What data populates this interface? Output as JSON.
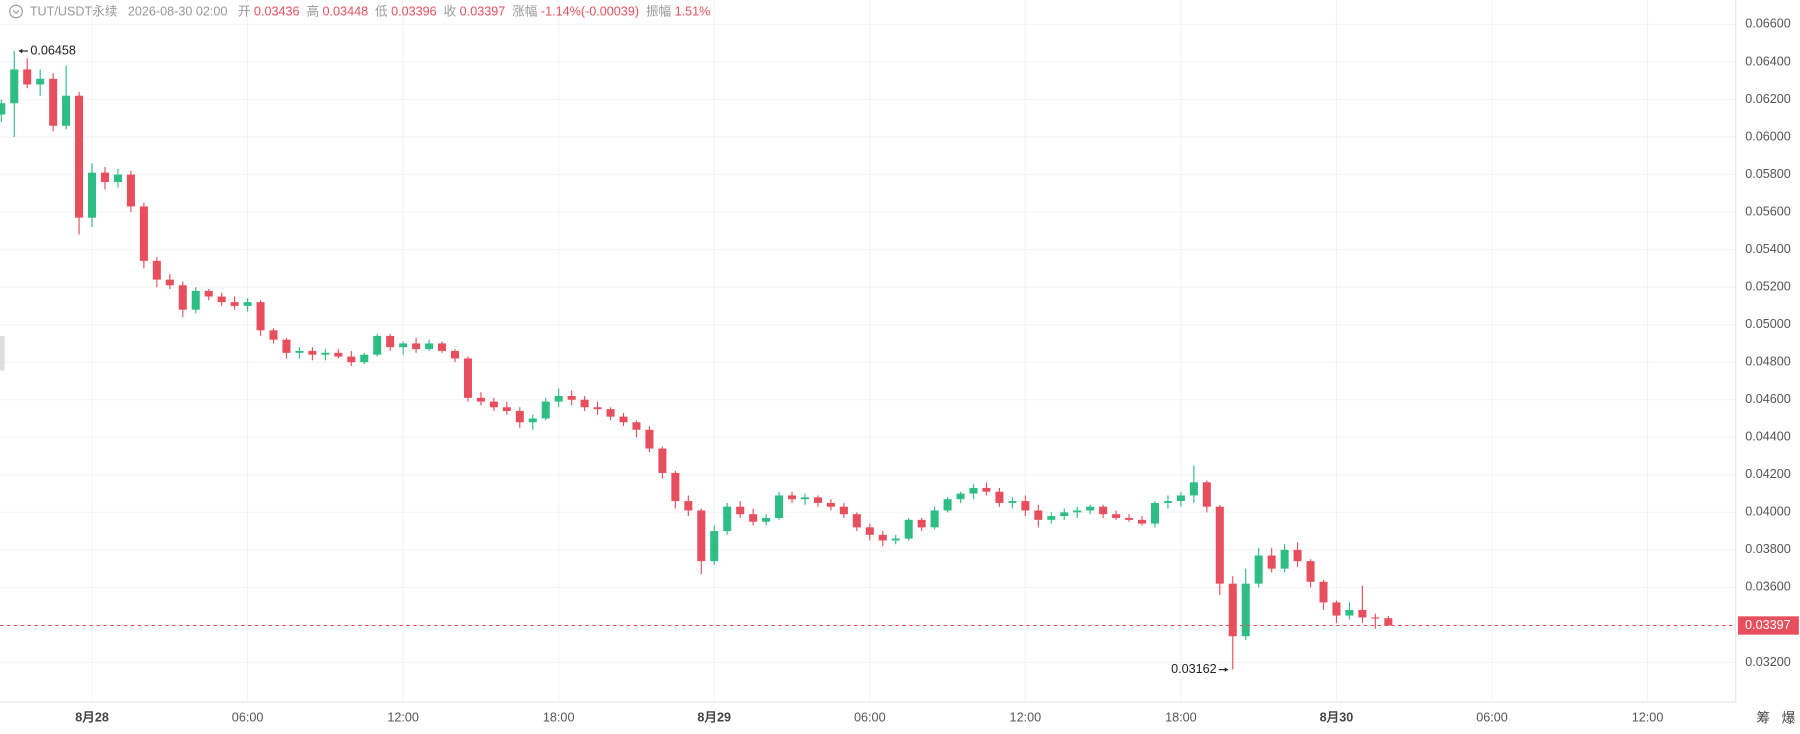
{
  "header": {
    "symbol": "TUT/USDT永续",
    "time": "2026-08-30 02:00",
    "fields": [
      {
        "label": "开",
        "value": "0.03436"
      },
      {
        "label": "高",
        "value": "0.03448"
      },
      {
        "label": "低",
        "value": "0.03396"
      },
      {
        "label": "收",
        "value": "0.03397"
      },
      {
        "label": "涨幅",
        "value": "-1.14%(-0.00039)"
      },
      {
        "label": "振幅",
        "value": "1.51%"
      }
    ]
  },
  "side_buttons": [
    "筹",
    "爆"
  ],
  "chart_data": {
    "type": "candlestick",
    "up_color": "#2ebd85",
    "down_color": "#e84f5e",
    "grid": true,
    "ylim": [
      0.0299,
      0.0673
    ],
    "xlim": [
      -0.1,
      133.8
    ],
    "yticks": [
      {
        "value": 0.066,
        "label": "0.06600"
      },
      {
        "value": 0.064,
        "label": "0.06400"
      },
      {
        "value": 0.062,
        "label": "0.06200"
      },
      {
        "value": 0.06,
        "label": "0.06000"
      },
      {
        "value": 0.058,
        "label": "0.05800"
      },
      {
        "value": 0.056,
        "label": "0.05600"
      },
      {
        "value": 0.054,
        "label": "0.05400"
      },
      {
        "value": 0.052,
        "label": "0.05200"
      },
      {
        "value": 0.05,
        "label": "0.05000"
      },
      {
        "value": 0.048,
        "label": "0.04800"
      },
      {
        "value": 0.046,
        "label": "0.04600"
      },
      {
        "value": 0.044,
        "label": "0.04400"
      },
      {
        "value": 0.042,
        "label": "0.04200"
      },
      {
        "value": 0.04,
        "label": "0.04000"
      },
      {
        "value": 0.038,
        "label": "0.03800"
      },
      {
        "value": 0.036,
        "label": "0.03600"
      },
      {
        "value": 0.034,
        "label": "0.03400"
      },
      {
        "value": 0.032,
        "label": "0.03200"
      }
    ],
    "xticks": [
      {
        "value": 7,
        "label": "8月28"
      },
      {
        "value": 19,
        "label": "06:00"
      },
      {
        "value": 31,
        "label": "12:00"
      },
      {
        "value": 43,
        "label": "18:00"
      },
      {
        "value": 55,
        "label": "8月29"
      },
      {
        "value": 67,
        "label": "06:00"
      },
      {
        "value": 79,
        "label": "12:00"
      },
      {
        "value": 91,
        "label": "18:00"
      },
      {
        "value": 103,
        "label": "8月30"
      },
      {
        "value": 115,
        "label": "06:00"
      },
      {
        "value": 127,
        "label": "12:00"
      }
    ],
    "high_annotation": {
      "index": 1,
      "value": 0.06458,
      "label": "0.06458"
    },
    "low_annotation": {
      "index": 95,
      "value": 0.03162,
      "label": "0.03162"
    },
    "last_price": {
      "value": 0.03397,
      "label": "0.03397"
    },
    "candles": [
      [
        0.0612,
        0.062,
        0.0608,
        0.0618
      ],
      [
        0.0618,
        0.06458,
        0.06,
        0.0636
      ],
      [
        0.0636,
        0.0642,
        0.0626,
        0.0628
      ],
      [
        0.0628,
        0.0636,
        0.0622,
        0.0631
      ],
      [
        0.0631,
        0.0634,
        0.0603,
        0.0606
      ],
      [
        0.0606,
        0.0638,
        0.0604,
        0.0622
      ],
      [
        0.0622,
        0.0624,
        0.0548,
        0.0557
      ],
      [
        0.0557,
        0.0586,
        0.0552,
        0.0581
      ],
      [
        0.0581,
        0.0584,
        0.0572,
        0.0576
      ],
      [
        0.0576,
        0.0583,
        0.0573,
        0.058
      ],
      [
        0.058,
        0.0582,
        0.056,
        0.0563
      ],
      [
        0.0563,
        0.0565,
        0.053,
        0.0534
      ],
      [
        0.0534,
        0.0536,
        0.052,
        0.0524
      ],
      [
        0.0524,
        0.0527,
        0.0519,
        0.0521
      ],
      [
        0.0521,
        0.0523,
        0.0504,
        0.0508
      ],
      [
        0.0508,
        0.052,
        0.0506,
        0.0518
      ],
      [
        0.0518,
        0.0519,
        0.0513,
        0.0515
      ],
      [
        0.0515,
        0.0517,
        0.051,
        0.0512
      ],
      [
        0.0512,
        0.0515,
        0.0508,
        0.051
      ],
      [
        0.051,
        0.0514,
        0.0507,
        0.0512
      ],
      [
        0.0512,
        0.0513,
        0.0494,
        0.0497
      ],
      [
        0.0497,
        0.0498,
        0.049,
        0.0492
      ],
      [
        0.0492,
        0.0493,
        0.0482,
        0.0485
      ],
      [
        0.0485,
        0.0488,
        0.0482,
        0.0486
      ],
      [
        0.0486,
        0.0488,
        0.0481,
        0.0484
      ],
      [
        0.0484,
        0.0487,
        0.0481,
        0.0485
      ],
      [
        0.0485,
        0.0487,
        0.0482,
        0.0483
      ],
      [
        0.0483,
        0.0486,
        0.0478,
        0.048
      ],
      [
        0.048,
        0.0485,
        0.0479,
        0.0484
      ],
      [
        0.0484,
        0.0495,
        0.0483,
        0.0494
      ],
      [
        0.0494,
        0.0495,
        0.0486,
        0.0488
      ],
      [
        0.0488,
        0.0491,
        0.0484,
        0.049
      ],
      [
        0.049,
        0.0493,
        0.0485,
        0.0487
      ],
      [
        0.0487,
        0.0492,
        0.0486,
        0.049
      ],
      [
        0.049,
        0.0491,
        0.0485,
        0.0486
      ],
      [
        0.0486,
        0.0487,
        0.048,
        0.0482
      ],
      [
        0.0482,
        0.0483,
        0.0459,
        0.0461
      ],
      [
        0.0461,
        0.0464,
        0.0457,
        0.0459
      ],
      [
        0.0459,
        0.0461,
        0.0454,
        0.0456
      ],
      [
        0.0456,
        0.0459,
        0.0452,
        0.0454
      ],
      [
        0.0454,
        0.0456,
        0.0445,
        0.0448
      ],
      [
        0.0448,
        0.0452,
        0.0444,
        0.045
      ],
      [
        0.045,
        0.0461,
        0.0449,
        0.0459
      ],
      [
        0.0459,
        0.0466,
        0.0456,
        0.0462
      ],
      [
        0.0462,
        0.0465,
        0.0457,
        0.046
      ],
      [
        0.046,
        0.0462,
        0.0454,
        0.0456
      ],
      [
        0.0456,
        0.0459,
        0.0452,
        0.0455
      ],
      [
        0.0455,
        0.0456,
        0.0449,
        0.0451
      ],
      [
        0.0451,
        0.0453,
        0.0446,
        0.0448
      ],
      [
        0.0448,
        0.0449,
        0.044,
        0.0444
      ],
      [
        0.0444,
        0.0446,
        0.0432,
        0.0434
      ],
      [
        0.0434,
        0.0435,
        0.0418,
        0.0421
      ],
      [
        0.0421,
        0.0422,
        0.0402,
        0.0406
      ],
      [
        0.0406,
        0.0409,
        0.0398,
        0.0401
      ],
      [
        0.0401,
        0.0402,
        0.0367,
        0.0374
      ],
      [
        0.0374,
        0.0393,
        0.0372,
        0.039
      ],
      [
        0.039,
        0.0405,
        0.0388,
        0.0403
      ],
      [
        0.0403,
        0.0406,
        0.0397,
        0.0399
      ],
      [
        0.0399,
        0.0402,
        0.0393,
        0.0395
      ],
      [
        0.0395,
        0.0399,
        0.0393,
        0.0397
      ],
      [
        0.0397,
        0.0411,
        0.0396,
        0.0409
      ],
      [
        0.0409,
        0.0411,
        0.0405,
        0.0407
      ],
      [
        0.0407,
        0.041,
        0.0404,
        0.0408
      ],
      [
        0.0408,
        0.0409,
        0.0403,
        0.0405
      ],
      [
        0.0405,
        0.0407,
        0.0401,
        0.0403
      ],
      [
        0.0403,
        0.0405,
        0.0397,
        0.0399
      ],
      [
        0.0399,
        0.04,
        0.039,
        0.0392
      ],
      [
        0.0392,
        0.0394,
        0.0385,
        0.0388
      ],
      [
        0.0388,
        0.039,
        0.0382,
        0.0385
      ],
      [
        0.0385,
        0.0388,
        0.0383,
        0.0386
      ],
      [
        0.0386,
        0.0397,
        0.0385,
        0.0396
      ],
      [
        0.0396,
        0.0397,
        0.039,
        0.0392
      ],
      [
        0.0392,
        0.0403,
        0.0391,
        0.0401
      ],
      [
        0.0401,
        0.0408,
        0.04,
        0.0407
      ],
      [
        0.0407,
        0.0411,
        0.0405,
        0.041
      ],
      [
        0.041,
        0.0415,
        0.0407,
        0.0413
      ],
      [
        0.0413,
        0.0416,
        0.0409,
        0.0411
      ],
      [
        0.0411,
        0.0413,
        0.0403,
        0.0405
      ],
      [
        0.0405,
        0.0408,
        0.0402,
        0.0406
      ],
      [
        0.0406,
        0.0409,
        0.0398,
        0.0401
      ],
      [
        0.0401,
        0.0404,
        0.0392,
        0.0396
      ],
      [
        0.0396,
        0.04,
        0.0394,
        0.0398
      ],
      [
        0.0398,
        0.0402,
        0.0396,
        0.04
      ],
      [
        0.04,
        0.0403,
        0.0397,
        0.0401
      ],
      [
        0.0401,
        0.0404,
        0.0399,
        0.0403
      ],
      [
        0.0403,
        0.0404,
        0.0397,
        0.0399
      ],
      [
        0.0399,
        0.0401,
        0.0396,
        0.0397
      ],
      [
        0.0397,
        0.0399,
        0.0395,
        0.0396
      ],
      [
        0.0396,
        0.0398,
        0.0393,
        0.0394
      ],
      [
        0.0394,
        0.0406,
        0.0392,
        0.0405
      ],
      [
        0.0405,
        0.0409,
        0.0402,
        0.0406
      ],
      [
        0.0406,
        0.0411,
        0.0403,
        0.0409
      ],
      [
        0.0409,
        0.0425,
        0.0405,
        0.0416
      ],
      [
        0.0416,
        0.0417,
        0.04,
        0.0403
      ],
      [
        0.0403,
        0.0404,
        0.0356,
        0.0362
      ],
      [
        0.0362,
        0.0366,
        0.03162,
        0.0334
      ],
      [
        0.0334,
        0.037,
        0.0332,
        0.0362
      ],
      [
        0.0362,
        0.0381,
        0.036,
        0.0377
      ],
      [
        0.0377,
        0.0381,
        0.0368,
        0.037
      ],
      [
        0.037,
        0.0383,
        0.0368,
        0.038
      ],
      [
        0.038,
        0.0384,
        0.0371,
        0.0374
      ],
      [
        0.0374,
        0.0375,
        0.036,
        0.0363
      ],
      [
        0.0363,
        0.0364,
        0.0348,
        0.0352
      ],
      [
        0.0352,
        0.0353,
        0.0341,
        0.0345
      ],
      [
        0.0345,
        0.0352,
        0.0343,
        0.0348
      ],
      [
        0.0348,
        0.0361,
        0.0341,
        0.0344
      ],
      [
        0.0344,
        0.0346,
        0.0338,
        0.03436
      ],
      [
        0.03436,
        0.03448,
        0.03396,
        0.03397
      ]
    ]
  }
}
